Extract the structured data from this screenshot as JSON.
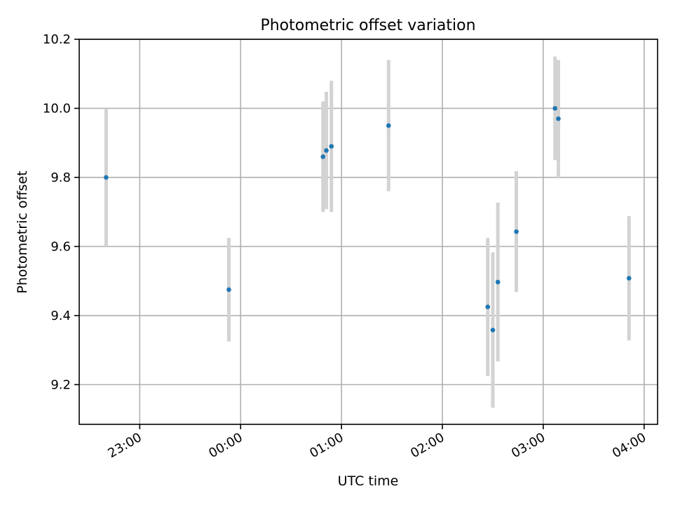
{
  "chart_data": {
    "type": "scatter",
    "title": "Photometric offset variation",
    "xlabel": "UTC time",
    "ylabel": "Photometric offset",
    "x_ticks": [
      "23:00",
      "00:00",
      "01:00",
      "02:00",
      "03:00",
      "04:00"
    ],
    "y_ticks": [
      "9.2",
      "9.4",
      "9.6",
      "9.8",
      "10.0",
      "10.2"
    ],
    "xlim": [
      "22:24",
      "04:08"
    ],
    "ylim": [
      9.085,
      10.2
    ],
    "grid": true,
    "colors": {
      "points": "#1f77b4",
      "error_bars": "#d3d3d3",
      "grid": "#b0b0b0"
    },
    "points": [
      {
        "time": "22:40",
        "value": 9.8,
        "error": 0.2
      },
      {
        "time": "23:53",
        "value": 9.475,
        "error": 0.15
      },
      {
        "time": "00:49",
        "value": 9.86,
        "error": 0.16
      },
      {
        "time": "00:51",
        "value": 9.878,
        "error": 0.17
      },
      {
        "time": "00:54",
        "value": 9.89,
        "error": 0.19
      },
      {
        "time": "01:28",
        "value": 9.95,
        "error": 0.19
      },
      {
        "time": "02:27",
        "value": 9.425,
        "error": 0.2
      },
      {
        "time": "02:30",
        "value": 9.358,
        "error": 0.225
      },
      {
        "time": "02:33",
        "value": 9.497,
        "error": 0.23
      },
      {
        "time": "02:44",
        "value": 9.643,
        "error": 0.175
      },
      {
        "time": "03:07",
        "value": 10.0,
        "error": 0.15
      },
      {
        "time": "03:09",
        "value": 9.97,
        "error": 0.17
      },
      {
        "time": "03:51",
        "value": 9.508,
        "error": 0.18
      }
    ]
  }
}
